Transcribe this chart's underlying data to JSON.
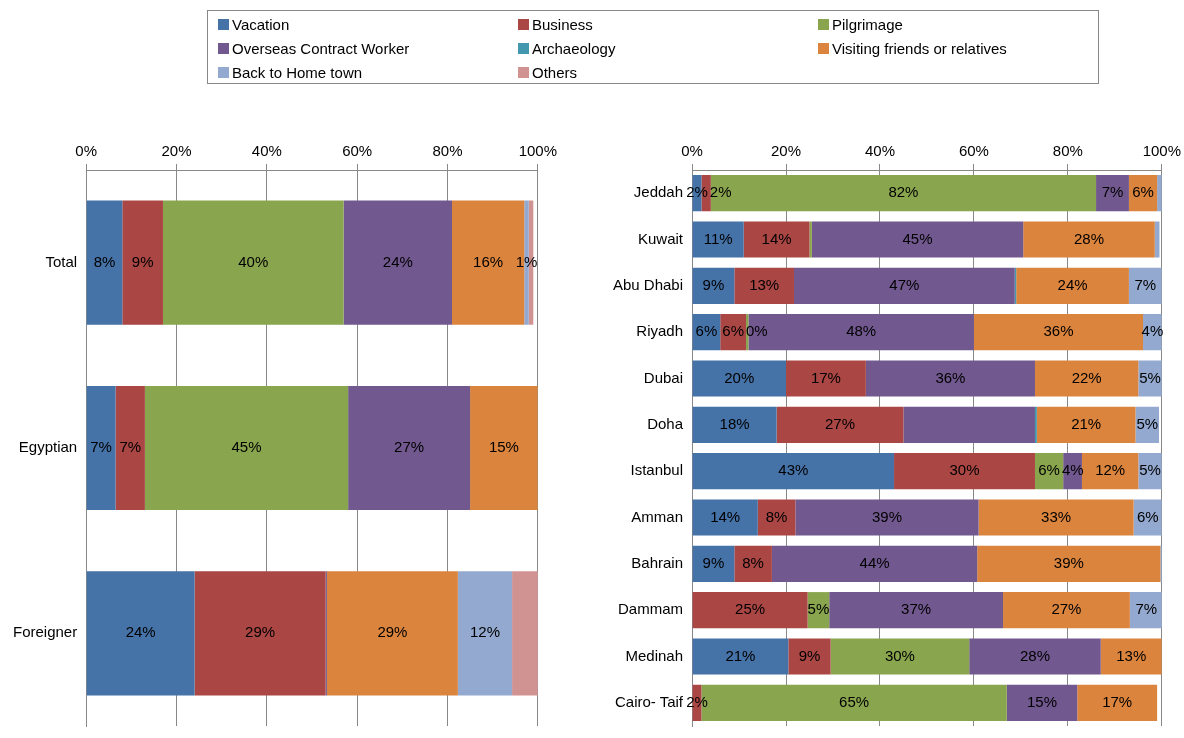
{
  "chart_data": [
    {
      "type": "bar",
      "orientation": "horizontal",
      "stacked": true,
      "legend": "top",
      "grid": "x",
      "categories": [
        "Total",
        "Egyptian",
        "Foreigner"
      ],
      "xlim": [
        0,
        100
      ],
      "xticks": [
        {
          "value": 0,
          "label": "0%"
        },
        {
          "value": 20,
          "label": "20%"
        },
        {
          "value": 40,
          "label": "40%"
        },
        {
          "value": 60,
          "label": "60%"
        },
        {
          "value": 80,
          "label": "80%"
        },
        {
          "value": 100,
          "label": "100%"
        }
      ],
      "series": [
        {
          "name": "Vacation",
          "color": "#4572a7",
          "values": [
            8,
            6.5,
            24
          ],
          "value_labels": [
            "8%",
            "7%",
            "24%"
          ]
        },
        {
          "name": "Business",
          "color": "#aa4643",
          "values": [
            9,
            6.5,
            29
          ],
          "value_labels": [
            "9%",
            "7%",
            "29%"
          ]
        },
        {
          "name": "Pilgrimage",
          "color": "#89a54e",
          "values": [
            40,
            45,
            null
          ],
          "value_labels": [
            "40%",
            "45%",
            null
          ]
        },
        {
          "name": "Overseas Contract Worker",
          "color": "#71588f",
          "values": [
            24,
            27,
            0.3
          ],
          "value_labels": [
            "24%",
            "27%",
            null
          ]
        },
        {
          "name": "Archaeology",
          "color": "#4198af",
          "values": [
            null,
            null,
            null
          ],
          "value_labels": [
            null,
            null,
            null
          ]
        },
        {
          "name": "Visiting friends or relatives",
          "color": "#db843d",
          "values": [
            16,
            15,
            29
          ],
          "value_labels": [
            "16%",
            "15%",
            "29%"
          ]
        },
        {
          "name": "Back to Home town",
          "color": "#93a9cf",
          "values": [
            1,
            null,
            12
          ],
          "value_labels": [
            "1%",
            null,
            "12%"
          ]
        },
        {
          "name": "Others",
          "color": "#d19392",
          "values": [
            1,
            null,
            6
          ],
          "value_labels": [
            null,
            null,
            null
          ]
        }
      ]
    },
    {
      "type": "bar",
      "orientation": "horizontal",
      "stacked": true,
      "grid": "x",
      "categories": [
        "Jeddah",
        "Kuwait",
        "Abu Dhabi",
        "Riyadh",
        "Dubai",
        "Doha",
        "Istanbul",
        "Amman",
        "Bahrain",
        "Dammam",
        "Medinah",
        "Cairo- Taif"
      ],
      "xlim": [
        0,
        100
      ],
      "xticks": [
        {
          "value": 0,
          "label": "0%"
        },
        {
          "value": 20,
          "label": "20%"
        },
        {
          "value": 40,
          "label": "40%"
        },
        {
          "value": 60,
          "label": "60%"
        },
        {
          "value": 80,
          "label": "80%"
        },
        {
          "value": 100,
          "label": "100%"
        }
      ],
      "series": [
        {
          "color": "#4572a7",
          "values": [
            2,
            11,
            9,
            6,
            20,
            18,
            43,
            14,
            9,
            null,
            20.5,
            null
          ],
          "value_labels": [
            "2%",
            "11%",
            "9%",
            "6%",
            "20%",
            "18%",
            "43%",
            "14%",
            "9%",
            null,
            "21%",
            null
          ]
        },
        {
          "color": "#aa4643",
          "values": [
            2,
            14,
            12.7,
            5.5,
            17,
            27,
            30,
            8,
            8,
            24.6,
            9,
            2
          ],
          "value_labels": [
            "2%",
            "14%",
            "13%",
            "6%",
            "17%",
            "27%",
            "30%",
            "8%",
            "8%",
            "25%",
            "9%",
            "2%"
          ]
        },
        {
          "color": "#89a54e",
          "values": [
            82,
            0.5,
            null,
            0.5,
            null,
            null,
            6,
            null,
            null,
            4.6,
            29.5,
            65
          ],
          "value_labels": [
            "82%",
            null,
            null,
            "0%",
            null,
            null,
            "6%",
            null,
            null,
            "5%",
            "30%",
            "65%"
          ]
        },
        {
          "color": "#71588f",
          "values": [
            7,
            45,
            47,
            48,
            36,
            28,
            4,
            39,
            43.7,
            37,
            28,
            15
          ],
          "value_labels": [
            "7%",
            "45%",
            "47%",
            "48%",
            "36%",
            null,
            "4%",
            "39%",
            "44%",
            "37%",
            "28%",
            "15%"
          ]
        },
        {
          "color": "#4198af",
          "values": [
            null,
            null,
            0.3,
            null,
            null,
            0.4,
            null,
            null,
            null,
            null,
            null,
            null
          ],
          "value_labels": [
            null,
            null,
            null,
            null,
            null,
            null,
            null,
            null,
            null,
            null,
            null,
            null
          ]
        },
        {
          "color": "#db843d",
          "values": [
            6,
            28,
            24,
            36,
            22,
            21,
            12,
            33,
            39,
            27,
            13,
            17
          ],
          "value_labels": [
            "6%",
            "28%",
            "24%",
            "36%",
            "22%",
            "21%",
            "12%",
            "33%",
            "39%",
            "27%",
            "13%",
            "17%"
          ]
        },
        {
          "color": "#93a9cf",
          "values": [
            1,
            1,
            7,
            4,
            5,
            5,
            5,
            6,
            0.3,
            7,
            null,
            null
          ],
          "value_labels": [
            null,
            null,
            "7%",
            "4%",
            "5%",
            "5%",
            "5%",
            "6%",
            null,
            "7%",
            null,
            null
          ]
        }
      ]
    }
  ]
}
